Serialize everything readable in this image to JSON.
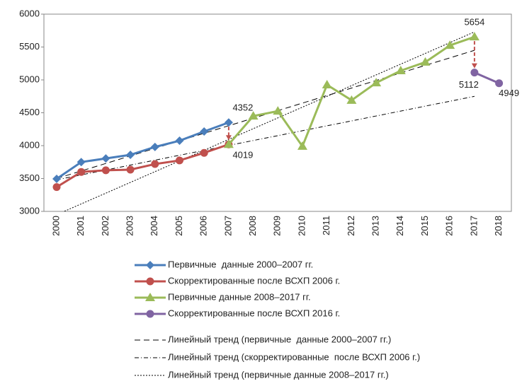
{
  "chart_data": {
    "type": "line",
    "categories": [
      "2000",
      "2001",
      "2002",
      "2003",
      "2004",
      "2005",
      "2006",
      "2007",
      "2008",
      "2009",
      "2010",
      "2011",
      "2012",
      "2013",
      "2014",
      "2015",
      "2016",
      "2017",
      "2018"
    ],
    "ylim": [
      3000,
      6000
    ],
    "yticks": [
      3000,
      3500,
      4000,
      4500,
      5000,
      5500,
      6000
    ],
    "grid": false,
    "series": [
      {
        "name": "Первичные  данные 2000–2007 гг.",
        "color": "#4a7ebb",
        "marker": "diamond",
        "dash": "none",
        "values": [
          3495,
          3750,
          3805,
          3860,
          3980,
          4075,
          4215,
          4352,
          null,
          null,
          null,
          null,
          null,
          null,
          null,
          null,
          null,
          null,
          null
        ]
      },
      {
        "name": "Скорректированные после ВСХП 2006 г.",
        "color": "#c0504d",
        "marker": "circle",
        "dash": "none",
        "values": [
          3370,
          3600,
          3625,
          3635,
          3720,
          3775,
          3890,
          4019,
          null,
          null,
          null,
          null,
          null,
          null,
          null,
          null,
          null,
          null,
          null
        ]
      },
      {
        "name": "Первичные данные 2008–2017 гг.",
        "color": "#9bbb59",
        "marker": "triangle",
        "dash": "none",
        "values": [
          null,
          null,
          null,
          null,
          null,
          null,
          null,
          4019,
          4450,
          4525,
          3990,
          4925,
          4690,
          4955,
          5140,
          5270,
          5525,
          5654,
          null
        ]
      },
      {
        "name": "Скорректированные после ВСХП 2016 г.",
        "color": "#8064a2",
        "marker": "circle",
        "dash": "none",
        "values": [
          null,
          null,
          null,
          null,
          null,
          null,
          null,
          null,
          null,
          null,
          null,
          null,
          null,
          null,
          null,
          null,
          null,
          5112,
          4949
        ]
      },
      {
        "name": "Линейный тренд (первичные  данные 2000–2007 гг.)",
        "color": "#000000",
        "marker": "none",
        "dash": "8,5",
        "values": [
          3500,
          3615,
          3729,
          3844,
          3959,
          4074,
          4188,
          4303,
          4418,
          4532,
          4647,
          4762,
          4876,
          4991,
          5106,
          5221,
          5335,
          5450,
          null
        ]
      },
      {
        "name": "Линейный тренд (скорректированные  после ВСХП 2006 г.)",
        "color": "#000000",
        "marker": "none",
        "dash": "6,3,1,3",
        "values": [
          3480,
          3555,
          3629,
          3704,
          3779,
          3854,
          3928,
          4003,
          4078,
          4152,
          4227,
          4302,
          4376,
          4451,
          4526,
          4601,
          4675,
          4750,
          null
        ]
      },
      {
        "name": "Линейный тренд (первичные данные 2008–2017 гг.)",
        "color": "#000000",
        "marker": "none",
        "dash": "2,2",
        "values": [
          2950,
          3114,
          3277,
          3441,
          3604,
          3768,
          3931,
          4095,
          4258,
          4422,
          4585,
          4749,
          4913,
          5076,
          5240,
          5403,
          5567,
          5730,
          null
        ]
      }
    ]
  }
}
